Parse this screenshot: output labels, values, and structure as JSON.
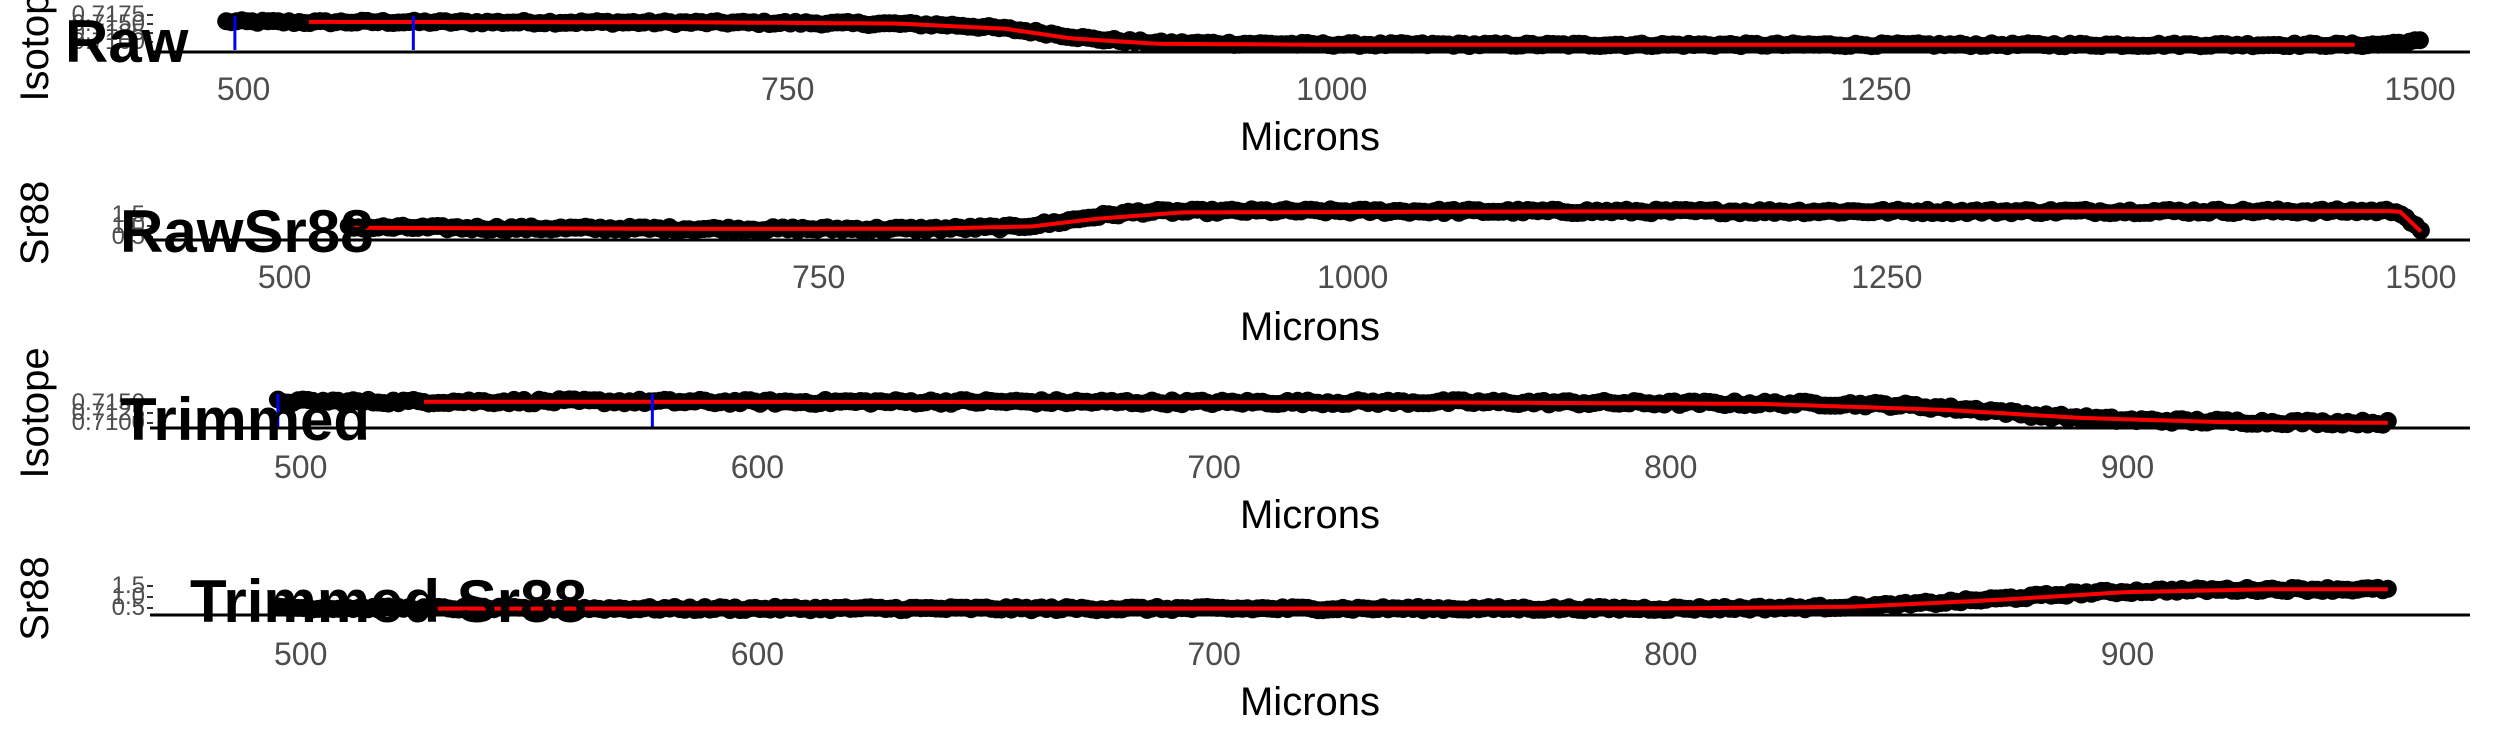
{
  "chart_data": [
    {
      "type": "scatter",
      "title": "Raw",
      "xlabel": "Microns",
      "ylabel": "Isotope",
      "xlim": [
        457,
        1523
      ],
      "ylim": [
        0.709,
        0.7177
      ],
      "xticks": [
        500,
        750,
        1000,
        1250,
        1500
      ],
      "yticks": [
        "0.7175",
        "0.7150",
        "0.7125",
        "0.7100"
      ],
      "grid": false,
      "point_series": [
        {
          "x": [
            492,
            510,
            530,
            560,
            600,
            650,
            700,
            750,
            800,
            830,
            850,
            870,
            890,
            920,
            1000,
            1100,
            1200,
            1300,
            1400,
            1480,
            1500
          ],
          "y": [
            0.7172,
            0.7171,
            0.717,
            0.7171,
            0.717,
            0.717,
            0.7169,
            0.7168,
            0.7165,
            0.716,
            0.715,
            0.7135,
            0.7118,
            0.7106,
            0.7101,
            0.71,
            0.71,
            0.71,
            0.71,
            0.71,
            0.7112
          ],
          "band": 0.0009
        }
      ],
      "fit_line": {
        "x": [
          530,
          700,
          800,
          850,
          880,
          920,
          1000,
          1250,
          1470
        ],
        "y": [
          0.7171,
          0.717,
          0.7166,
          0.715,
          0.712,
          0.7103,
          0.71,
          0.71,
          0.71
        ]
      },
      "vlines": [
        496,
        578
      ]
    },
    {
      "type": "scatter",
      "title": "RawSr88",
      "xlabel": "Microns",
      "ylabel": "Sr88",
      "xlim": [
        437,
        1523
      ],
      "ylim": [
        -0.2,
        1.8
      ],
      "xticks": [
        500,
        750,
        1000,
        1250,
        1500
      ],
      "yticks": [
        "1.5",
        "1.0",
        "0.5"
      ],
      "grid": false,
      "point_series": [
        {
          "x": [
            530,
            600,
            700,
            800,
            840,
            860,
            880,
            900,
            950,
            1100,
            1300,
            1490,
            1495,
            1500
          ],
          "y": [
            0.55,
            0.5,
            0.45,
            0.45,
            0.55,
            0.8,
            1.2,
            1.45,
            1.5,
            1.48,
            1.48,
            1.5,
            0.9,
            0.3
          ],
          "band": 0.22
        }
      ],
      "fit_line": {
        "x": [
          530,
          700,
          800,
          850,
          880,
          920,
          1100,
          1300,
          1490,
          1495,
          1500
        ],
        "y": [
          0.52,
          0.45,
          0.46,
          0.6,
          1.05,
          1.42,
          1.48,
          1.48,
          1.5,
          0.9,
          0.3
        ]
      },
      "vlines": []
    },
    {
      "type": "scatter",
      "title": "Trimmed",
      "xlabel": "Microns",
      "ylabel": "Isotope",
      "xlim": [
        467,
        975
      ],
      "ylim": [
        0.7089,
        0.7162
      ],
      "xticks": [
        500,
        600,
        700,
        800,
        900
      ],
      "yticks": [
        "0.7150",
        "0.7125",
        "0.7100"
      ],
      "grid": false,
      "point_series": [
        {
          "x": [
            495,
            520,
            560,
            600,
            650,
            700,
            750,
            800,
            830,
            850,
            870,
            880,
            900,
            930,
            957
          ],
          "y": [
            0.7153,
            0.7152,
            0.7153,
            0.7151,
            0.7152,
            0.715,
            0.7151,
            0.7148,
            0.7147,
            0.7143,
            0.7128,
            0.7115,
            0.7102,
            0.7097,
            0.7095
          ],
          "band": 0.0011
        }
      ],
      "fit_line": {
        "x": [
          527,
          650,
          750,
          820,
          860,
          890,
          920,
          957
        ],
        "y": [
          0.7152,
          0.7151,
          0.715,
          0.7146,
          0.713,
          0.7108,
          0.7097,
          0.7095
        ]
      },
      "vlines": [
        495,
        577
      ]
    },
    {
      "type": "scatter",
      "title": "Trimmed Sr88",
      "xlabel": "Microns",
      "ylabel": "Sr88",
      "xlim": [
        467,
        975
      ],
      "ylim": [
        0.1,
        1.9
      ],
      "xticks": [
        500,
        600,
        700,
        800,
        900
      ],
      "yticks": [
        "1.5",
        "1.0",
        "0.5"
      ],
      "grid": false,
      "point_series": [
        {
          "x": [
            495,
            550,
            600,
            700,
            800,
            830,
            850,
            870,
            890,
            910,
            930,
            957
          ],
          "y": [
            0.5,
            0.45,
            0.45,
            0.45,
            0.45,
            0.5,
            0.65,
            0.95,
            1.3,
            1.45,
            1.5,
            1.5
          ],
          "band": 0.18
        }
      ],
      "fit_line": {
        "x": [
          530,
          700,
          800,
          840,
          870,
          900,
          930,
          957
        ],
        "y": [
          0.45,
          0.45,
          0.46,
          0.55,
          0.9,
          1.35,
          1.5,
          1.5
        ]
      },
      "vlines": []
    }
  ],
  "colors": {
    "points": "#000000",
    "fit_line": "#ff0000",
    "vline": "#0000ff",
    "axis": "#000000",
    "tick_text": "#4d4d4d"
  }
}
